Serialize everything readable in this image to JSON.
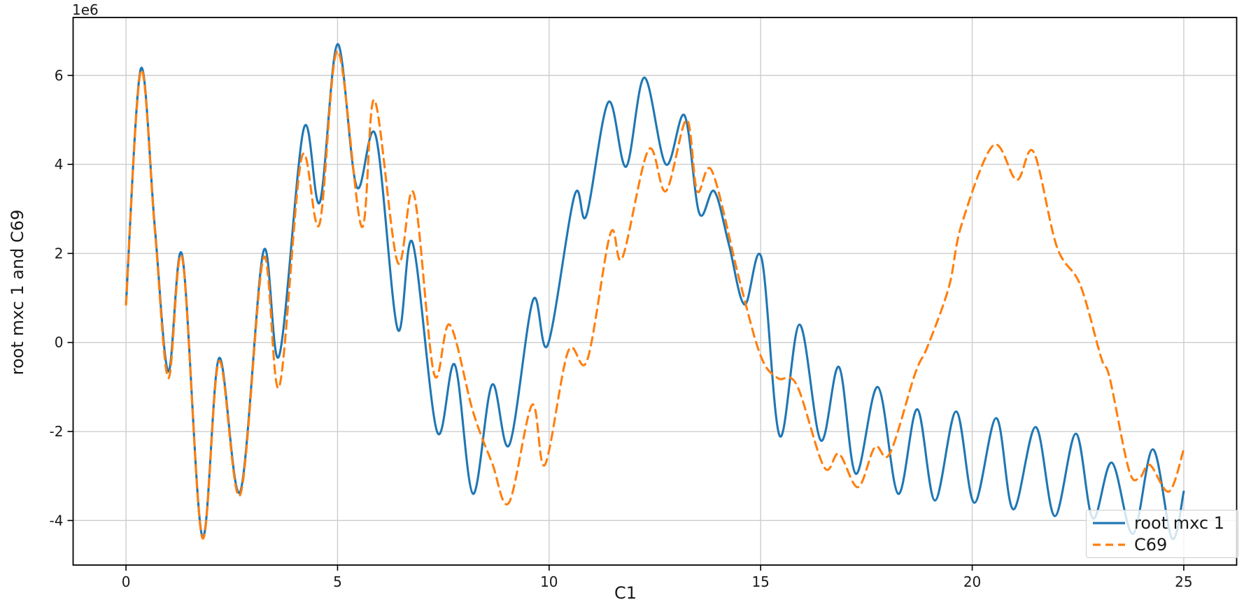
{
  "figure": {
    "offset_label": "1e6",
    "xlabel": "C1",
    "ylabel": "root mxc 1 and C69"
  },
  "axes": {
    "xlim": [
      -1.25,
      26.25
    ],
    "ylim": [
      -5.0,
      7.3
    ],
    "x_ticks": [
      0,
      5,
      10,
      15,
      20,
      25
    ],
    "y_ticks": [
      -4,
      -2,
      0,
      2,
      4,
      6
    ],
    "grid": true,
    "spine_color": "#000000",
    "grid_color": "#cdcdcd",
    "tick_text_color": "#1a1a1a"
  },
  "legend": {
    "position": "lower right",
    "entries": [
      {
        "label": "root mxc 1",
        "color": "#1f77b4",
        "style": "solid"
      },
      {
        "label": "C69",
        "color": "#ff7f0e",
        "style": "dashed"
      }
    ]
  },
  "chart_data": {
    "type": "line",
    "title": "",
    "xlabel": "C1",
    "ylabel": "root mxc 1 and C69",
    "y_unit_multiplier": 1000000,
    "y_offset_text": "1e6",
    "xlim": [
      -1.25,
      26.25
    ],
    "ylim": [
      -5.0,
      7.3
    ],
    "grid": true,
    "legend_position": "lower right",
    "series": [
      {
        "name": "root mxc 1",
        "color": "#1f77b4",
        "style": "solid",
        "points": [
          [
            0.0,
            0.87
          ],
          [
            0.35,
            6.15
          ],
          [
            0.68,
            2.6
          ],
          [
            1.0,
            -0.65
          ],
          [
            1.33,
            1.95
          ],
          [
            1.8,
            -4.35
          ],
          [
            2.2,
            -0.35
          ],
          [
            2.7,
            -3.35
          ],
          [
            3.25,
            2.05
          ],
          [
            3.62,
            -0.3
          ],
          [
            4.2,
            4.8
          ],
          [
            4.58,
            3.15
          ],
          [
            5.0,
            6.7
          ],
          [
            5.45,
            3.5
          ],
          [
            5.9,
            4.65
          ],
          [
            6.42,
            0.3
          ],
          [
            6.77,
            2.25
          ],
          [
            7.35,
            -2.0
          ],
          [
            7.77,
            -0.5
          ],
          [
            8.2,
            -3.4
          ],
          [
            8.65,
            -0.95
          ],
          [
            9.06,
            -2.3
          ],
          [
            9.62,
            0.95
          ],
          [
            9.97,
            -0.05
          ],
          [
            10.6,
            3.3
          ],
          [
            10.88,
            2.85
          ],
          [
            11.4,
            5.4
          ],
          [
            11.82,
            3.95
          ],
          [
            12.25,
            5.95
          ],
          [
            12.76,
            4.0
          ],
          [
            13.2,
            5.1
          ],
          [
            13.55,
            2.9
          ],
          [
            13.9,
            3.4
          ],
          [
            14.25,
            2.2
          ],
          [
            14.62,
            0.85
          ],
          [
            15.02,
            1.9
          ],
          [
            15.45,
            -2.1
          ],
          [
            15.92,
            0.4
          ],
          [
            16.42,
            -2.2
          ],
          [
            16.85,
            -0.55
          ],
          [
            17.25,
            -2.95
          ],
          [
            17.77,
            -1.0
          ],
          [
            18.25,
            -3.4
          ],
          [
            18.7,
            -1.5
          ],
          [
            19.12,
            -3.55
          ],
          [
            19.62,
            -1.55
          ],
          [
            20.05,
            -3.6
          ],
          [
            20.57,
            -1.7
          ],
          [
            20.97,
            -3.75
          ],
          [
            21.5,
            -1.9
          ],
          [
            21.95,
            -3.9
          ],
          [
            22.45,
            -2.05
          ],
          [
            22.85,
            -3.95
          ],
          [
            23.3,
            -2.7
          ],
          [
            23.8,
            -4.3
          ],
          [
            24.27,
            -2.4
          ],
          [
            24.72,
            -4.4
          ],
          [
            25.0,
            -3.35
          ]
        ]
      },
      {
        "name": "C69",
        "color": "#ff7f0e",
        "style": "dashed",
        "points": [
          [
            0.0,
            0.85
          ],
          [
            0.35,
            6.1
          ],
          [
            0.68,
            2.55
          ],
          [
            1.0,
            -0.8
          ],
          [
            1.33,
            1.9
          ],
          [
            1.8,
            -4.38
          ],
          [
            2.2,
            -0.42
          ],
          [
            2.7,
            -3.42
          ],
          [
            3.25,
            1.9
          ],
          [
            3.62,
            -1.0
          ],
          [
            4.15,
            4.15
          ],
          [
            4.57,
            2.65
          ],
          [
            5.0,
            6.55
          ],
          [
            5.57,
            2.6
          ],
          [
            5.87,
            5.45
          ],
          [
            6.42,
            1.8
          ],
          [
            6.8,
            3.35
          ],
          [
            7.28,
            -0.7
          ],
          [
            7.65,
            0.4
          ],
          [
            8.2,
            -1.55
          ],
          [
            8.65,
            -2.7
          ],
          [
            9.05,
            -3.6
          ],
          [
            9.6,
            -1.4
          ],
          [
            9.9,
            -2.75
          ],
          [
            10.45,
            -0.2
          ],
          [
            10.9,
            -0.4
          ],
          [
            11.45,
            2.45
          ],
          [
            11.73,
            1.9
          ],
          [
            12.35,
            4.33
          ],
          [
            12.76,
            3.4
          ],
          [
            13.25,
            5.0
          ],
          [
            13.5,
            3.4
          ],
          [
            13.85,
            3.85
          ],
          [
            14.5,
            1.4
          ],
          [
            15.0,
            -0.3
          ],
          [
            15.4,
            -0.8
          ],
          [
            15.85,
            -0.95
          ],
          [
            16.5,
            -2.8
          ],
          [
            16.85,
            -2.5
          ],
          [
            17.3,
            -3.25
          ],
          [
            17.7,
            -2.35
          ],
          [
            18.05,
            -2.5
          ],
          [
            18.65,
            -0.7
          ],
          [
            18.95,
            -0.08
          ],
          [
            19.45,
            1.25
          ],
          [
            19.75,
            2.65
          ],
          [
            20.5,
            4.43
          ],
          [
            21.05,
            3.65
          ],
          [
            21.45,
            4.28
          ],
          [
            22.0,
            2.15
          ],
          [
            22.55,
            1.3
          ],
          [
            23.05,
            -0.35
          ],
          [
            23.25,
            -0.8
          ],
          [
            23.7,
            -2.85
          ],
          [
            23.95,
            -3.05
          ],
          [
            24.2,
            -2.75
          ],
          [
            24.65,
            -3.35
          ],
          [
            25.0,
            -2.4
          ]
        ]
      }
    ]
  }
}
